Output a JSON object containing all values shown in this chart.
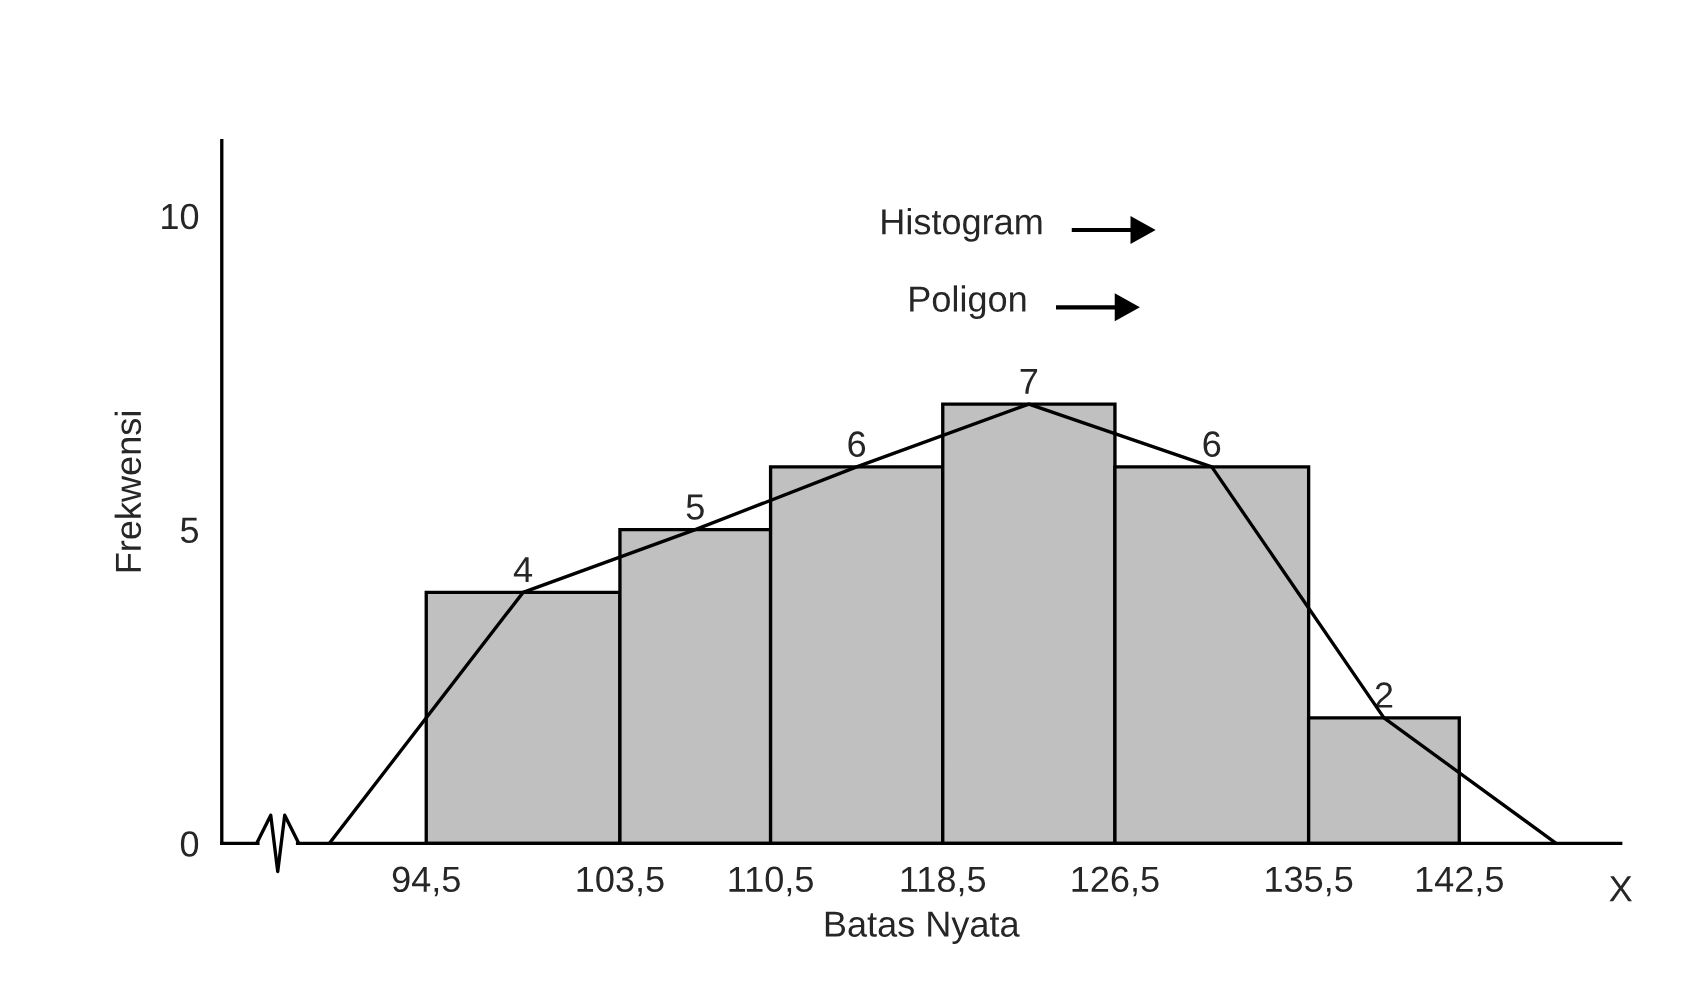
{
  "chart_data": {
    "type": "histogram",
    "xlabel": "Batas Nyata",
    "ylabel": "Frekwensi",
    "bins": [
      94.5,
      103.5,
      110.5,
      118.5,
      126.5,
      135.5,
      142.5
    ],
    "values": [
      4,
      5,
      6,
      7,
      6,
      2
    ],
    "color": "#c0c0c0",
    "value_labels": [
      "4",
      "5",
      "6",
      "7",
      "6",
      "2"
    ],
    "series": [
      {
        "type": "line",
        "color": "#000000",
        "x": [
          90,
          99,
          107,
          114.5,
          122.5,
          131,
          139,
          147
        ],
        "values": [
          0,
          4,
          5,
          6,
          7,
          6,
          2,
          0
        ]
      }
    ],
    "xlim": [
      85,
      150
    ],
    "xticks": [
      {
        "value": 94.5,
        "label": "94,5"
      },
      {
        "value": 103.5,
        "label": "103,5"
      },
      {
        "value": 110.5,
        "label": "110,5"
      },
      {
        "value": 118.5,
        "label": "118,5"
      },
      {
        "value": 126.5,
        "label": "126,5"
      },
      {
        "value": 135.5,
        "label": "135,5"
      },
      {
        "value": 142.5,
        "label": "142,5"
      }
    ],
    "ylim": [
      0,
      11.2
    ],
    "yticks": [
      0,
      5,
      10
    ],
    "grid": false,
    "annotations": [
      "Histogram",
      "Poligon",
      "X"
    ]
  }
}
